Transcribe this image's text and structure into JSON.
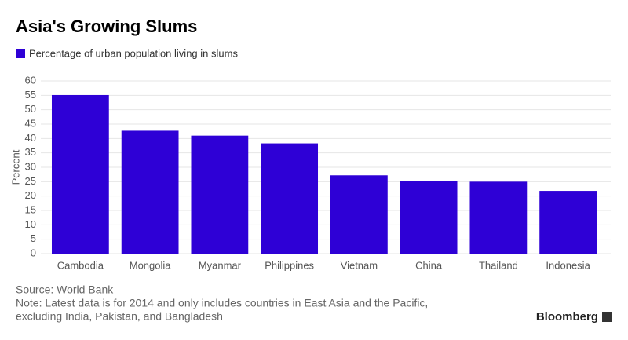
{
  "chart_data": {
    "type": "bar",
    "title": "Asia's Growing Slums",
    "legend_label": "Percentage of urban population living in slums",
    "y_label": "Percent",
    "categories": [
      "Cambodia",
      "Mongolia",
      "Myanmar",
      "Philippines",
      "Vietnam",
      "China",
      "Thailand",
      "Indonesia"
    ],
    "values": [
      55.1,
      42.7,
      41.0,
      38.3,
      27.2,
      25.2,
      25.0,
      21.8
    ],
    "color": "#2e00d6",
    "ylim": [
      0,
      60
    ],
    "yticks": [
      0,
      5,
      10,
      15,
      20,
      25,
      30,
      35,
      40,
      45,
      50,
      55,
      60
    ],
    "grid": true,
    "source": "Source: World Bank",
    "note": [
      "Note: Latest data is for 2014 and only includes countries in East Asia and the Pacific,",
      "excluding India, Pakistan, and Bangladesh"
    ],
    "brand": "Bloomberg"
  }
}
